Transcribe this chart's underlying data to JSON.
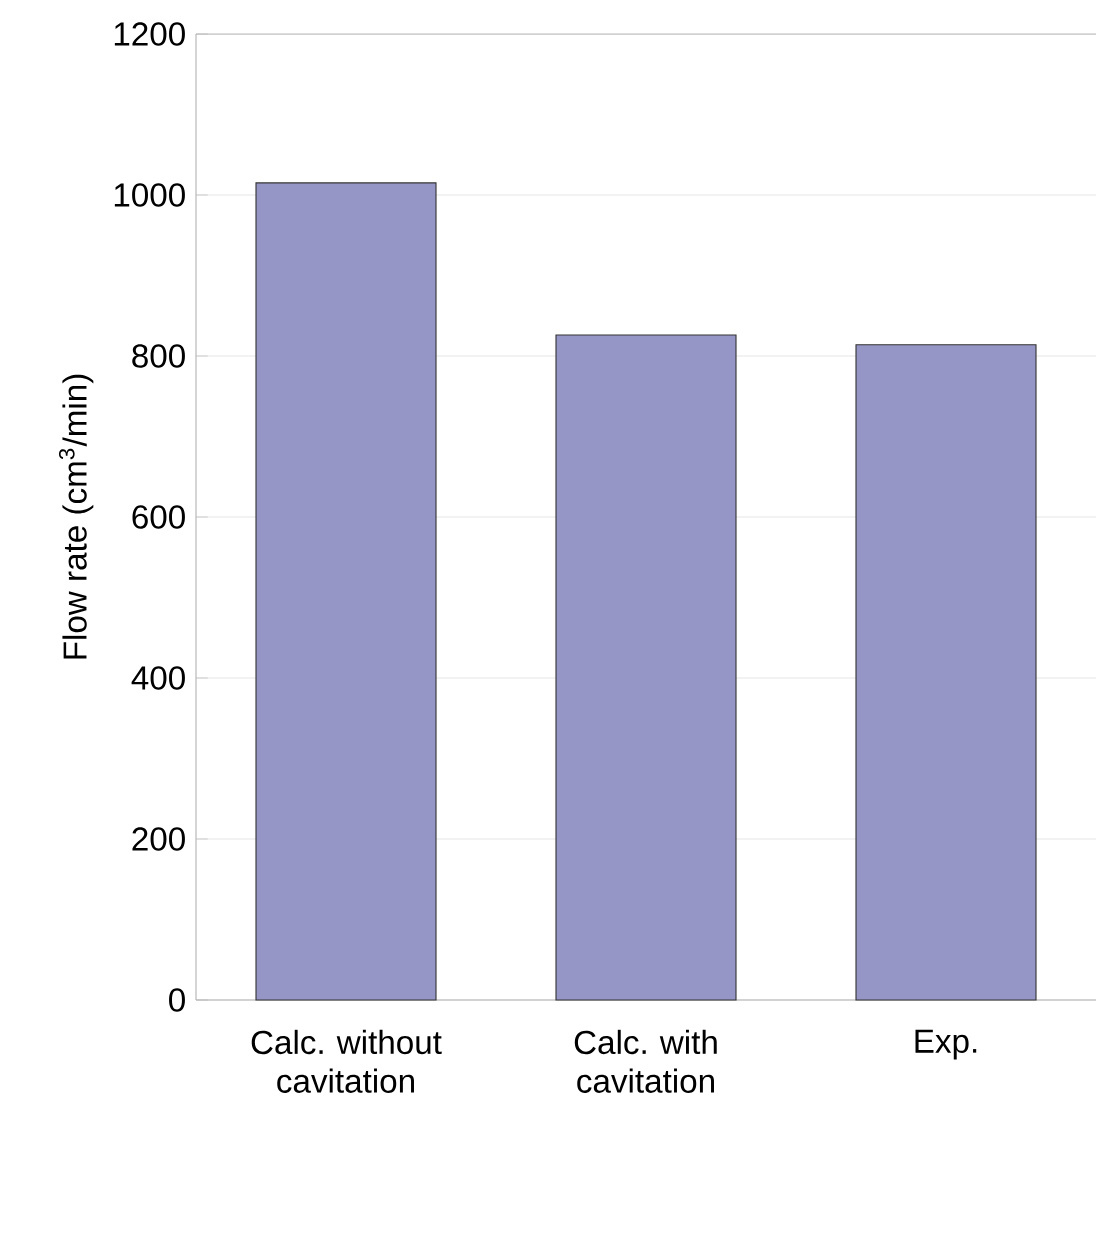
{
  "chart_data": {
    "type": "bar",
    "ylabel": "Flow rate (cm$^{3}$/min)",
    "categories": [
      "Calc. without cavitation",
      "Calc. with cavitation",
      "Exp."
    ],
    "values": [
      1015,
      826,
      814
    ],
    "color": "#9696c6",
    "ylim": [
      0,
      1200
    ],
    "yticks": [
      0,
      200,
      400,
      600,
      800,
      1000,
      1200
    ],
    "grid": "y"
  }
}
